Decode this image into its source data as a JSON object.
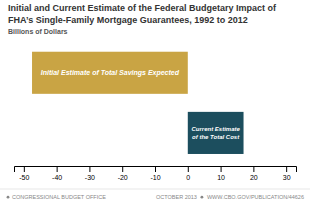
{
  "chart_data": {
    "type": "bar",
    "orientation": "horizontal",
    "title": "Initial and Current Estimate of the Federal Budgetary Impact of\nFHA’s Single-Family Mortgage Guarantees, 1992 to 2012",
    "subtitle": "Billions of Dollars",
    "categories": [
      "Initial Estimate of Total Savings Expected",
      "Current Estimate\nof the Total Cost"
    ],
    "values": [
      -47.5,
      17.0
    ],
    "colors": [
      "#C9A444",
      "#1C4E5E"
    ],
    "xlim": [
      -53,
      33
    ],
    "xticks": [
      -50,
      -40,
      -30,
      -20,
      -10,
      0,
      10,
      20,
      30
    ],
    "grid": false,
    "tick_labels": "x",
    "annotations": [
      "CONGRESSIONAL BUDGET OFFICE",
      "OCTOBER 2013",
      "WWW.CBO.GOV/PUBLICATION/44626"
    ]
  }
}
